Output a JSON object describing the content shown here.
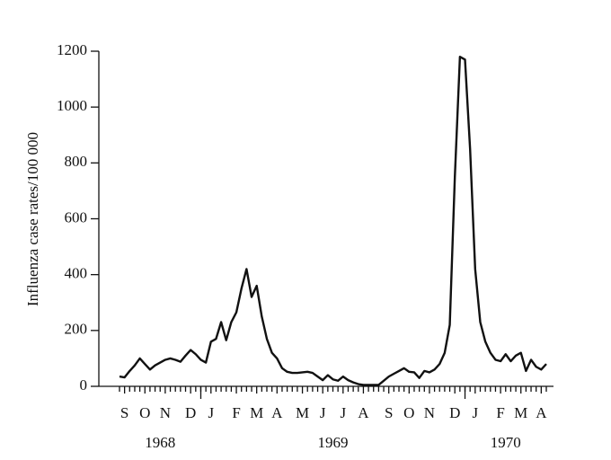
{
  "chart_data": {
    "type": "line",
    "y_label": "Influenza case rates/100 000",
    "categories": [
      null,
      "S",
      null,
      null,
      null,
      "O",
      null,
      null,
      null,
      "N",
      null,
      null,
      null,
      null,
      "D",
      null,
      null,
      null,
      "J",
      null,
      null,
      null,
      null,
      "F",
      null,
      null,
      null,
      "M",
      null,
      null,
      null,
      "A",
      null,
      null,
      null,
      null,
      "M",
      null,
      null,
      null,
      "J",
      null,
      null,
      null,
      "J",
      null,
      null,
      null,
      "A",
      null,
      null,
      null,
      null,
      "S",
      null,
      null,
      null,
      "O",
      null,
      null,
      null,
      "N",
      null,
      null,
      null,
      null,
      "D",
      null,
      null,
      null,
      "J",
      null,
      null,
      null,
      null,
      "F",
      null,
      null,
      null,
      "M",
      null,
      null,
      null,
      "A",
      null
    ],
    "year_labels": [
      "1968",
      "1969",
      "1970"
    ],
    "values": [
      35,
      32,
      55,
      75,
      100,
      80,
      60,
      75,
      85,
      95,
      100,
      95,
      88,
      110,
      130,
      115,
      95,
      85,
      160,
      170,
      230,
      165,
      230,
      265,
      350,
      420,
      320,
      360,
      250,
      170,
      120,
      100,
      65,
      52,
      48,
      48,
      50,
      52,
      48,
      35,
      22,
      40,
      25,
      20,
      35,
      22,
      14,
      8,
      5,
      5,
      5,
      5,
      20,
      35,
      45,
      55,
      65,
      52,
      50,
      30,
      55,
      50,
      60,
      80,
      120,
      220,
      750,
      1180,
      1170,
      850,
      420,
      230,
      160,
      120,
      95,
      90,
      115,
      90,
      110,
      120,
      55,
      95,
      70,
      60,
      80
    ],
    "color": "#111111",
    "ylim": [
      0,
      1200
    ],
    "yticks": [
      0,
      200,
      400,
      600,
      800,
      1000,
      1200
    ]
  }
}
